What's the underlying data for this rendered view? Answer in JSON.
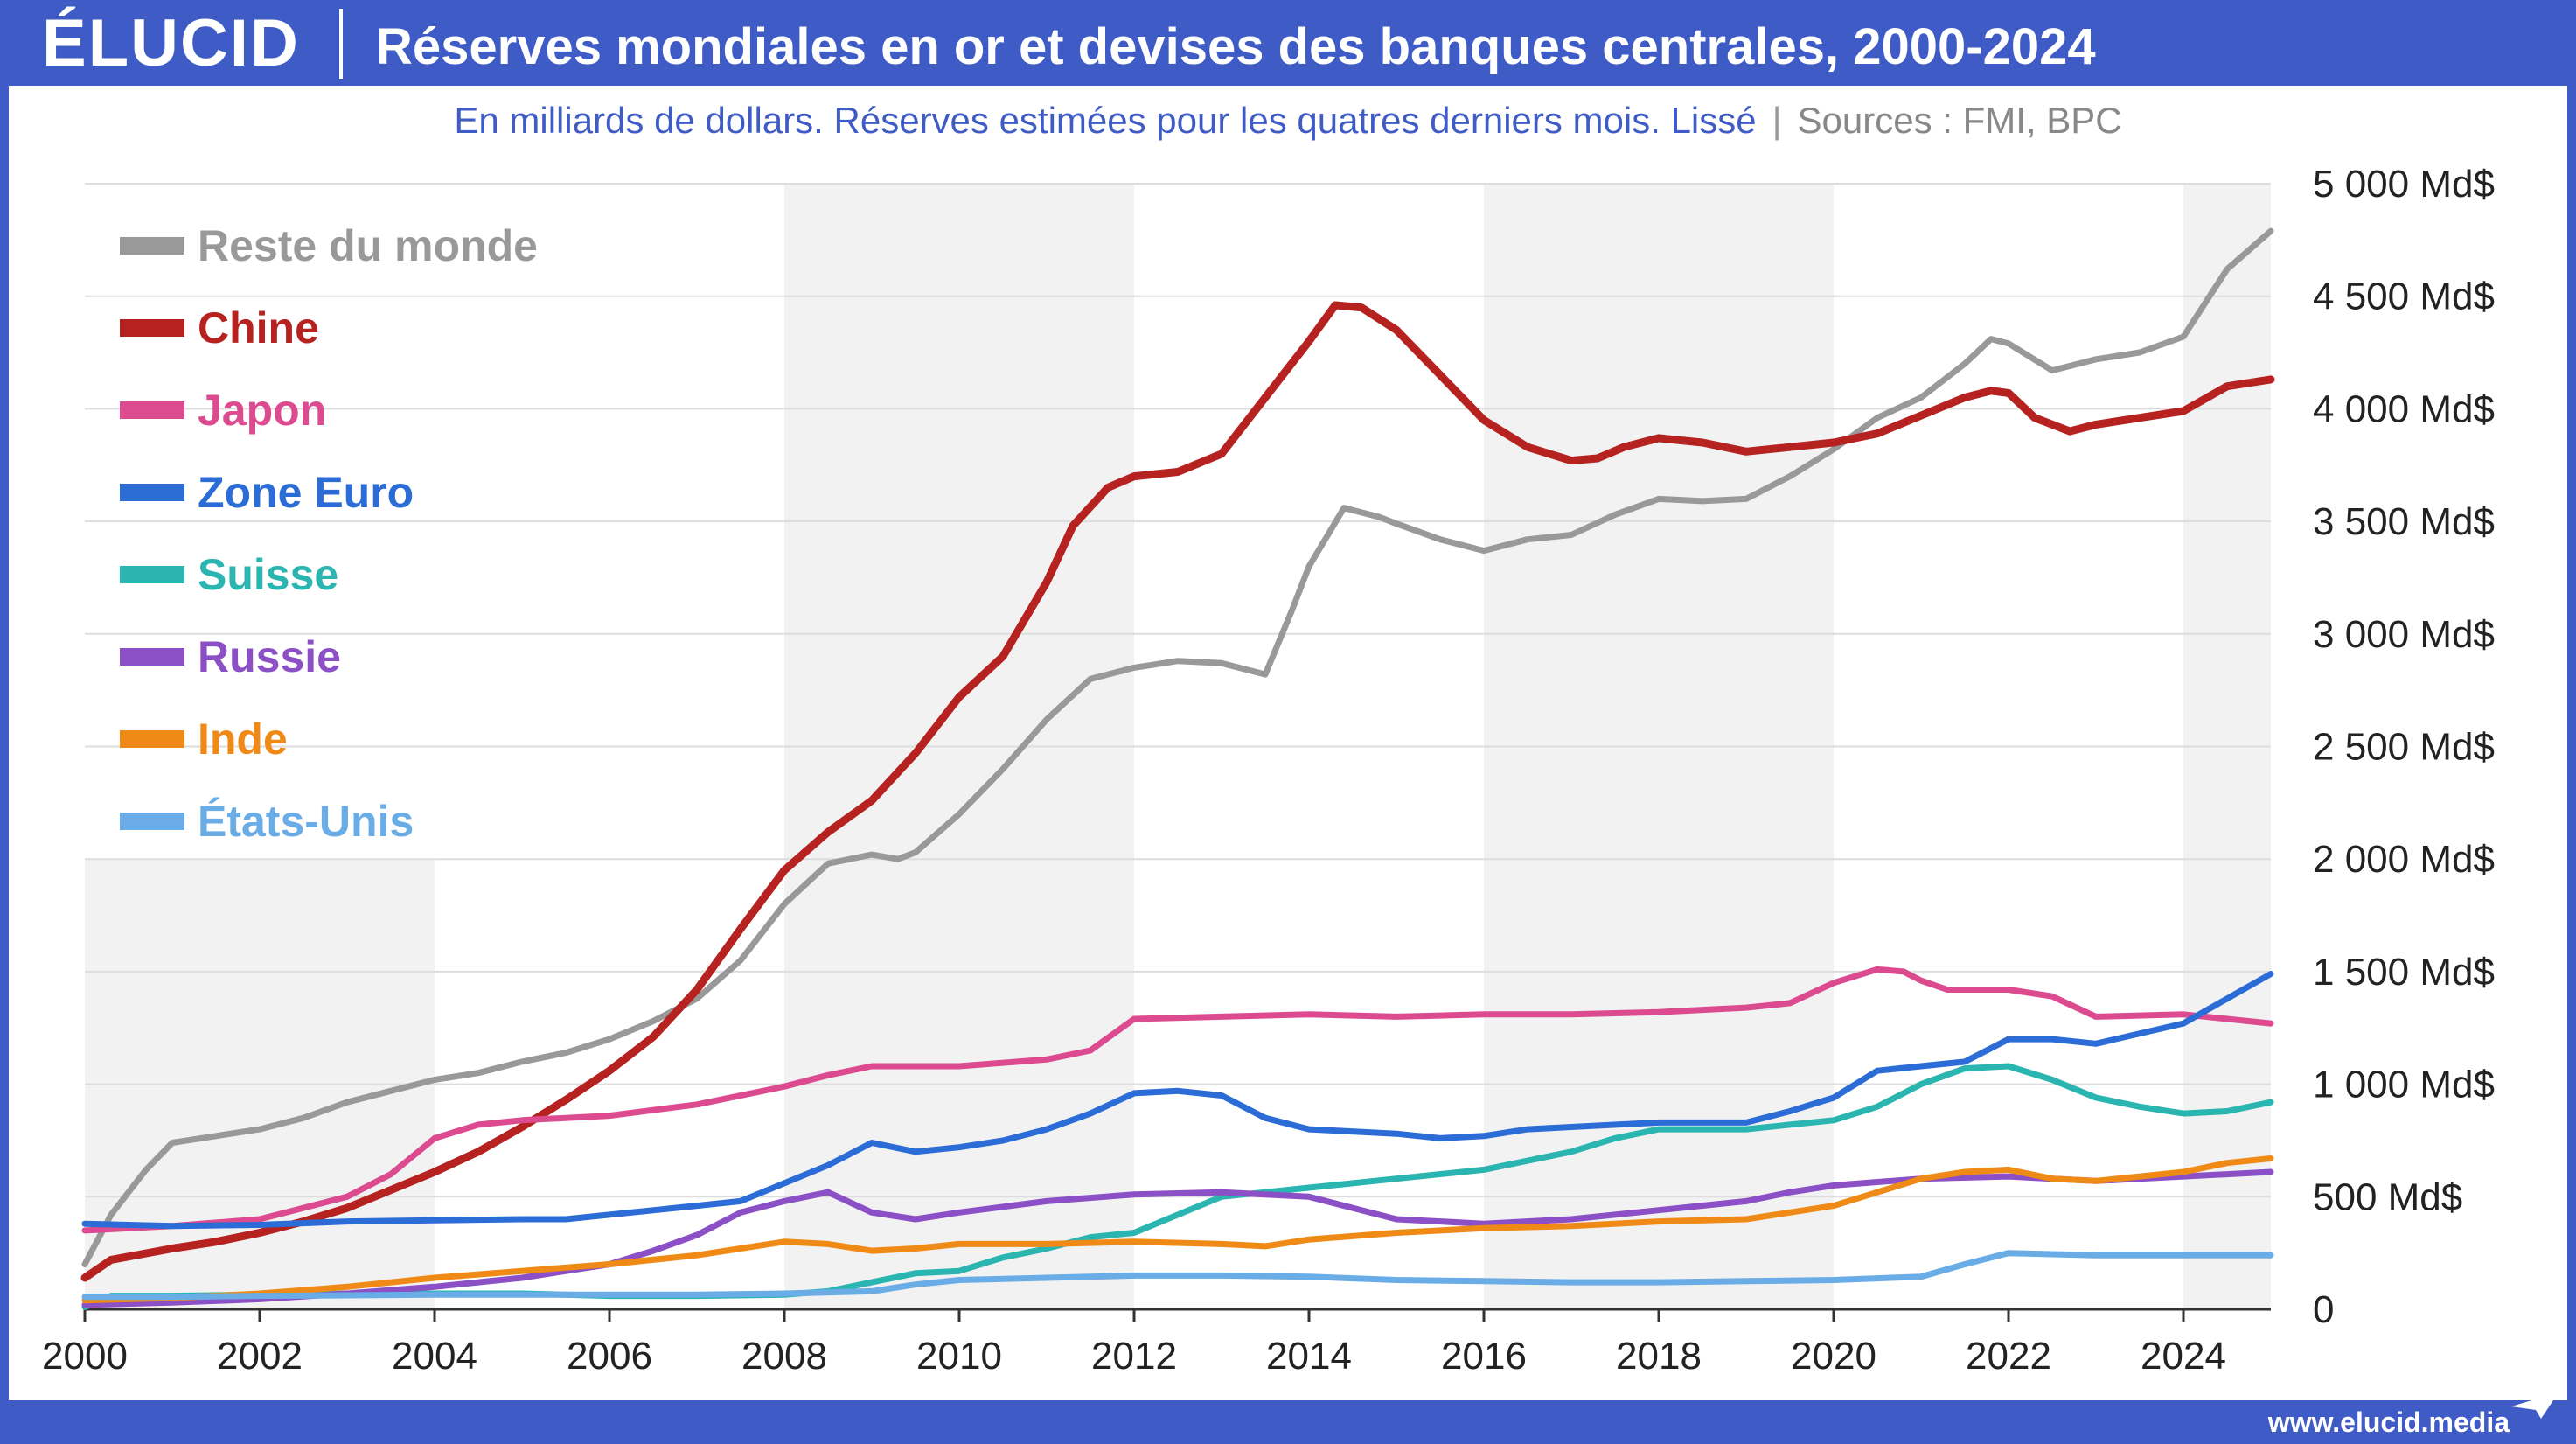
{
  "header": {
    "logo": "ÉLUCID",
    "title": "Réserves mondiales en or et devises des banques centrales, 2000-2024"
  },
  "subtitle": {
    "description": "En milliards de dollars. Réserves estimées pour les quatres derniers mois. Lissé",
    "separator": "|",
    "sources": "Sources : FMI, BPC"
  },
  "footer": {
    "url": "www.elucid.media"
  },
  "colors": {
    "brand": "#3f5bc6",
    "shade": "#f2f2f2",
    "grid": "#dddddd"
  },
  "chart_data": {
    "type": "line",
    "title": "Réserves mondiales en or et devises des banques centrales, 2000-2024",
    "xlim": [
      2000,
      2025
    ],
    "ylim": [
      0,
      5000
    ],
    "x_ticks": [
      2000,
      2002,
      2004,
      2006,
      2008,
      2010,
      2012,
      2014,
      2016,
      2018,
      2020,
      2022,
      2024
    ],
    "y_ticks": [
      0,
      500,
      1000,
      1500,
      2000,
      2500,
      3000,
      3500,
      4000,
      4500,
      5000
    ],
    "y_tick_labels": [
      "0",
      "500 Md$",
      "1 000 Md$",
      "1 500 Md$",
      "2 000 Md$",
      "2 500 Md$",
      "3 000 Md$",
      "3 500 Md$",
      "4 000 Md$",
      "4 500 Md$",
      "5 000 Md$"
    ],
    "y_axis_position": "right",
    "legend_position": "top-left",
    "grid": true,
    "shaded_periods": [
      [
        2000,
        2004,
        2000
      ],
      [
        2008,
        2012,
        5000
      ],
      [
        2016,
        2020,
        5000
      ],
      [
        2024,
        2025,
        5000
      ]
    ],
    "series": [
      {
        "name": "Reste du monde",
        "color": "#999999",
        "x": [
          2000,
          2000.3,
          2000.7,
          2001,
          2001.5,
          2002,
          2002.5,
          2003,
          2003.5,
          2004,
          2004.5,
          2005,
          2005.5,
          2006,
          2006.5,
          2007,
          2007.5,
          2008,
          2008.5,
          2009,
          2009.3,
          2009.5,
          2010,
          2010.5,
          2011,
          2011.5,
          2012,
          2012.5,
          2013,
          2013.5,
          2013.8,
          2014,
          2014.4,
          2014.8,
          2015,
          2015.5,
          2016,
          2016.5,
          2017,
          2017.5,
          2018,
          2018.5,
          2019,
          2019.5,
          2020,
          2020.5,
          2021,
          2021.5,
          2021.8,
          2022,
          2022.5,
          2023,
          2023.5,
          2024,
          2024.5,
          2025
        ],
        "values": [
          200,
          420,
          620,
          740,
          770,
          800,
          850,
          920,
          970,
          1020,
          1050,
          1100,
          1140,
          1200,
          1280,
          1380,
          1550,
          1800,
          1980,
          2020,
          2000,
          2030,
          2200,
          2400,
          2620,
          2800,
          2850,
          2880,
          2870,
          2820,
          3100,
          3300,
          3560,
          3520,
          3490,
          3420,
          3370,
          3420,
          3440,
          3530,
          3600,
          3590,
          3600,
          3700,
          3820,
          3960,
          4050,
          4200,
          4310,
          4290,
          4170,
          4220,
          4250,
          4320,
          4620,
          4790
        ]
      },
      {
        "name": "Chine",
        "color": "#b5221f",
        "x": [
          2000,
          2000.3,
          2001,
          2001.5,
          2002,
          2002.5,
          2003,
          2003.5,
          2004,
          2004.5,
          2005,
          2005.5,
          2006,
          2006.5,
          2007,
          2007.5,
          2008,
          2008.5,
          2009,
          2009.5,
          2010,
          2010.5,
          2011,
          2011.3,
          2011.7,
          2012,
          2012.5,
          2013,
          2013.5,
          2014,
          2014.3,
          2014.6,
          2015,
          2015.5,
          2016,
          2016.5,
          2017,
          2017.3,
          2017.6,
          2018,
          2018.5,
          2019,
          2019.5,
          2020,
          2020.5,
          2021,
          2021.5,
          2021.8,
          2022,
          2022.3,
          2022.7,
          2023,
          2023.5,
          2024,
          2024.5,
          2025
        ],
        "values": [
          140,
          220,
          270,
          300,
          340,
          390,
          450,
          530,
          610,
          700,
          810,
          930,
          1060,
          1210,
          1420,
          1690,
          1950,
          2120,
          2260,
          2470,
          2720,
          2900,
          3230,
          3480,
          3650,
          3700,
          3720,
          3800,
          4050,
          4300,
          4460,
          4450,
          4350,
          4150,
          3950,
          3830,
          3770,
          3780,
          3830,
          3870,
          3850,
          3810,
          3830,
          3850,
          3890,
          3970,
          4050,
          4080,
          4070,
          3960,
          3900,
          3930,
          3960,
          3990,
          4100,
          4130
        ]
      },
      {
        "name": "Japon",
        "color": "#dc4a8f",
        "x": [
          2000,
          2001,
          2002,
          2003,
          2003.5,
          2004,
          2004.5,
          2005,
          2006,
          2007,
          2008,
          2008.5,
          2009,
          2010,
          2011,
          2011.5,
          2012,
          2013,
          2014,
          2015,
          2016,
          2017,
          2018,
          2019,
          2019.5,
          2020,
          2020.5,
          2020.8,
          2021,
          2021.3,
          2022,
          2022.5,
          2023,
          2024,
          2025
        ],
        "values": [
          350,
          370,
          400,
          500,
          600,
          760,
          820,
          840,
          860,
          910,
          990,
          1040,
          1080,
          1080,
          1110,
          1150,
          1290,
          1300,
          1310,
          1300,
          1310,
          1310,
          1320,
          1340,
          1360,
          1450,
          1510,
          1500,
          1460,
          1420,
          1420,
          1390,
          1300,
          1310,
          1270
        ]
      },
      {
        "name": "Zone Euro",
        "color": "#2b6cd6",
        "x": [
          2000,
          2001,
          2002,
          2003,
          2004,
          2005,
          2005.5,
          2006,
          2007,
          2007.5,
          2008,
          2008.5,
          2009,
          2009.5,
          2010,
          2010.5,
          2011,
          2011.5,
          2012,
          2012.5,
          2013,
          2013.5,
          2014,
          2015,
          2015.5,
          2016,
          2016.5,
          2017,
          2018,
          2019,
          2019.5,
          2020,
          2020.5,
          2021,
          2021.5,
          2022,
          2022.5,
          2023,
          2024,
          2024.5,
          2025
        ],
        "values": [
          380,
          370,
          375,
          390,
          395,
          400,
          400,
          420,
          460,
          480,
          560,
          640,
          740,
          700,
          720,
          750,
          800,
          870,
          960,
          970,
          950,
          850,
          800,
          780,
          760,
          770,
          800,
          810,
          830,
          830,
          880,
          940,
          1060,
          1080,
          1100,
          1200,
          1200,
          1180,
          1270,
          1380,
          1490
        ]
      },
      {
        "name": "Suisse",
        "color": "#2ab5b0",
        "x": [
          2000,
          2000.3,
          2001,
          2002,
          2003,
          2004,
          2005,
          2006,
          2007,
          2008,
          2008.5,
          2009,
          2009.5,
          2010,
          2010.5,
          2011,
          2011.5,
          2012,
          2012.5,
          2013,
          2013.5,
          2014,
          2015,
          2016,
          2017,
          2017.5,
          2018,
          2019,
          2019.5,
          2020,
          2020.5,
          2021,
          2021.5,
          2022,
          2022.5,
          2023,
          2023.5,
          2024,
          2024.5,
          2025
        ],
        "values": [
          10,
          60,
          60,
          65,
          70,
          70,
          70,
          60,
          60,
          65,
          80,
          120,
          160,
          170,
          230,
          270,
          320,
          340,
          420,
          500,
          520,
          540,
          580,
          620,
          700,
          760,
          800,
          800,
          820,
          840,
          900,
          1000,
          1070,
          1080,
          1020,
          940,
          900,
          870,
          880,
          920
        ]
      },
      {
        "name": "Russie",
        "color": "#8b4fc6",
        "x": [
          2000,
          2001,
          2002,
          2003,
          2004,
          2005,
          2006,
          2006.5,
          2007,
          2007.5,
          2008,
          2008.5,
          2009,
          2009.5,
          2010,
          2011,
          2012,
          2013,
          2014,
          2015,
          2016,
          2017,
          2018,
          2019,
          2019.5,
          2020,
          2021,
          2022,
          2022.5,
          2023,
          2024,
          2024.5,
          2025
        ],
        "values": [
          20,
          30,
          45,
          70,
          100,
          140,
          200,
          260,
          330,
          430,
          480,
          520,
          430,
          400,
          430,
          480,
          510,
          520,
          500,
          400,
          380,
          400,
          440,
          480,
          520,
          550,
          580,
          590,
          580,
          570,
          590,
          600,
          610
        ]
      },
      {
        "name": "Inde",
        "color": "#f08a17",
        "x": [
          2000,
          2001,
          2002,
          2003,
          2004,
          2005,
          2006,
          2007,
          2007.5,
          2008,
          2008.5,
          2009,
          2009.5,
          2010,
          2011,
          2012,
          2013,
          2013.5,
          2014,
          2015,
          2016,
          2017,
          2018,
          2019,
          2020,
          2020.5,
          2021,
          2021.5,
          2022,
          2022.5,
          2023,
          2024,
          2024.5,
          2025
        ],
        "values": [
          40,
          50,
          70,
          100,
          140,
          170,
          200,
          240,
          270,
          300,
          290,
          260,
          270,
          290,
          290,
          300,
          290,
          280,
          310,
          340,
          360,
          370,
          390,
          400,
          460,
          520,
          580,
          610,
          620,
          580,
          570,
          610,
          650,
          670
        ]
      },
      {
        "name": "États-Unis",
        "color": "#6aade6",
        "x": [
          2000,
          2001,
          2002,
          2003,
          2004,
          2005,
          2006,
          2007,
          2008,
          2009,
          2009.5,
          2010,
          2011,
          2012,
          2013,
          2014,
          2015,
          2016,
          2017,
          2018,
          2019,
          2020,
          2021,
          2021.5,
          2022,
          2023,
          2024,
          2025
        ],
        "values": [
          55,
          55,
          60,
          62,
          65,
          65,
          65,
          65,
          70,
          80,
          110,
          130,
          140,
          150,
          150,
          145,
          130,
          125,
          120,
          120,
          125,
          130,
          145,
          200,
          250,
          240,
          240,
          240
        ]
      }
    ]
  }
}
